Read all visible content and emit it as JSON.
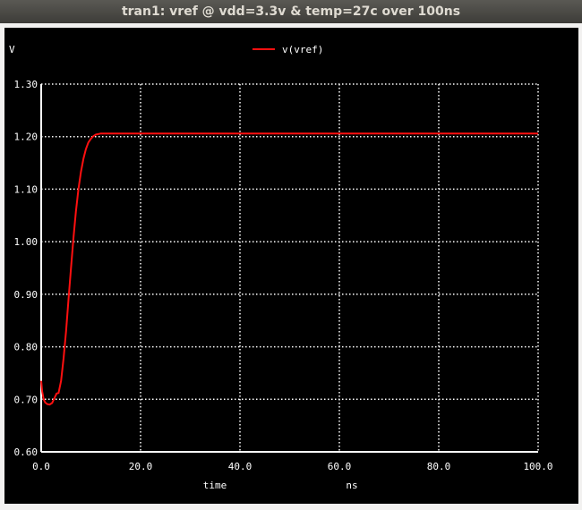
{
  "window": {
    "title": "tran1: vref @ vdd=3.3v & temp=27c over 100ns"
  },
  "colors": {
    "background": "#000000",
    "grid": "#ffffff",
    "trace": "#ff1010",
    "text": "#ffffff"
  },
  "chart_data": {
    "type": "line",
    "title": "",
    "xlabel": "time",
    "xunit": "ns",
    "yunit": "V",
    "xlim": [
      0,
      100
    ],
    "ylim": [
      0.6,
      1.3
    ],
    "xticks": [
      0,
      20,
      40,
      60,
      80,
      100
    ],
    "xtick_labels": [
      "0.0",
      "20.0",
      "40.0",
      "60.0",
      "80.0",
      "100.0"
    ],
    "yticks": [
      0.6,
      0.7,
      0.8,
      0.9,
      1.0,
      1.1,
      1.2,
      1.3
    ],
    "ytick_labels": [
      "0.60",
      "0.70",
      "0.80",
      "0.90",
      "1.00",
      "1.10",
      "1.20",
      "1.30"
    ],
    "grid": "dotted",
    "legend": {
      "placement": "top-center",
      "entries": [
        "v(vref)"
      ]
    },
    "series": [
      {
        "name": "v(vref)",
        "x": [
          0,
          0.2,
          0.5,
          0.8,
          1.2,
          1.7,
          2.2,
          2.7,
          3.1,
          3.5,
          4.0,
          4.5,
          5.0,
          5.5,
          6.0,
          6.5,
          7.0,
          7.5,
          8.0,
          8.5,
          9.0,
          9.5,
          10.0,
          10.5,
          11.0,
          11.5,
          12.0,
          12.5,
          13.0,
          14.0,
          15.0,
          16.0,
          18.0,
          20.0,
          30.0,
          50.0,
          70.0,
          100.0
        ],
        "values": [
          0.735,
          0.715,
          0.7,
          0.694,
          0.691,
          0.69,
          0.693,
          0.703,
          0.711,
          0.712,
          0.735,
          0.778,
          0.83,
          0.89,
          0.95,
          1.008,
          1.058,
          1.1,
          1.133,
          1.158,
          1.176,
          1.189,
          1.196,
          1.201,
          1.204,
          1.205,
          1.206,
          1.206,
          1.206,
          1.206,
          1.206,
          1.206,
          1.206,
          1.206,
          1.206,
          1.206,
          1.206,
          1.206
        ]
      }
    ]
  }
}
